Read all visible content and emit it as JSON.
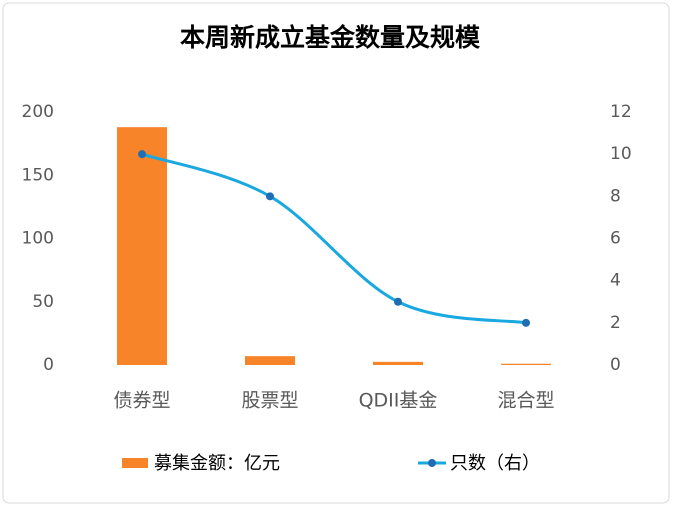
{
  "chart_data": {
    "type": "bar",
    "title": "本周新成立基金数量及规模",
    "categories": [
      "债券型",
      "股票型",
      "QDII基金",
      "混合型"
    ],
    "series": [
      {
        "name": "募集金额：亿元",
        "type": "bar",
        "color": "#f8842a",
        "values": [
          188,
          7,
          2.5,
          1
        ]
      },
      {
        "name": "只数（右）",
        "type": "line",
        "axis": "y2",
        "color": "#1aa8e0",
        "marker_color": "#1f6db5",
        "values": [
          10,
          8,
          3,
          2
        ]
      }
    ],
    "ylim": [
      0,
      200
    ],
    "yticks": [
      0,
      50,
      100,
      150,
      200
    ],
    "y2lim": [
      0,
      12
    ],
    "y2ticks": [
      0,
      2,
      4,
      6,
      8,
      10,
      12
    ],
    "legend": "bottom"
  }
}
